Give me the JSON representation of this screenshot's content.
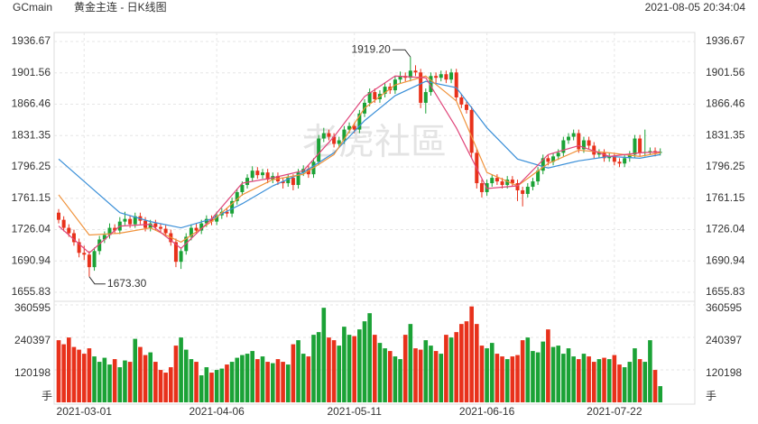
{
  "chart_data": {
    "type": "candlestick",
    "symbol": "GCmain",
    "title": "黄金主连 - 日K线图",
    "timestamp": "2021-08-05 20:34:04",
    "watermark": "老虎社區",
    "up_color": "#1ba236",
    "down_color": "#e8311b",
    "ylim": [
      1649.8,
      1944.7
    ],
    "yticks": [
      1936.67,
      1901.56,
      1866.46,
      1831.35,
      1796.25,
      1761.15,
      1726.04,
      1690.94,
      1655.83
    ],
    "grid": true,
    "categories": [
      null,
      null,
      null,
      null,
      null,
      "2021-03-01",
      null,
      null,
      null,
      null,
      null,
      null,
      null,
      null,
      null,
      null,
      null,
      null,
      null,
      null,
      null,
      null,
      null,
      null,
      null,
      null,
      null,
      null,
      null,
      null,
      null,
      "2021-04-06",
      null,
      null,
      null,
      null,
      null,
      null,
      null,
      null,
      null,
      null,
      null,
      null,
      null,
      null,
      null,
      null,
      null,
      null,
      null,
      null,
      null,
      null,
      null,
      null,
      null,
      null,
      "2021-05-11",
      null,
      null,
      null,
      null,
      null,
      null,
      null,
      null,
      null,
      null,
      null,
      null,
      null,
      null,
      null,
      null,
      null,
      null,
      null,
      null,
      null,
      null,
      null,
      null,
      null,
      "2021-06-16",
      null,
      null,
      null,
      null,
      null,
      null,
      null,
      null,
      null,
      null,
      null,
      null,
      null,
      null,
      null,
      null,
      null,
      null,
      null,
      null,
      null,
      null,
      null,
      null,
      "2021-07-22",
      null,
      null,
      null,
      null,
      null,
      null,
      null,
      null,
      null
    ],
    "candles": [
      [
        1745,
        1749,
        1733,
        1737
      ],
      [
        1737,
        1741,
        1724,
        1728
      ],
      [
        1728,
        1732,
        1718,
        1722
      ],
      [
        1722,
        1726,
        1708,
        1712
      ],
      [
        1712,
        1716,
        1695,
        1700
      ],
      [
        1700,
        1708,
        1692,
        1698
      ],
      [
        1698,
        1702,
        1673.3,
        1684
      ],
      [
        1684,
        1706,
        1680,
        1702
      ],
      [
        1702,
        1719,
        1698,
        1715
      ],
      [
        1715,
        1724,
        1711,
        1720
      ],
      [
        1720,
        1733,
        1716,
        1728
      ],
      [
        1728,
        1732,
        1721,
        1725
      ],
      [
        1725,
        1740,
        1721,
        1735
      ],
      [
        1735,
        1746,
        1731,
        1738
      ],
      [
        1738,
        1742,
        1728,
        1732
      ],
      [
        1732,
        1745,
        1728,
        1741
      ],
      [
        1741,
        1745,
        1732,
        1736
      ],
      [
        1736,
        1740,
        1724,
        1728
      ],
      [
        1728,
        1737,
        1724,
        1733
      ],
      [
        1733,
        1737,
        1725,
        1729
      ],
      [
        1729,
        1733,
        1723,
        1727
      ],
      [
        1727,
        1731,
        1718,
        1722
      ],
      [
        1722,
        1726,
        1708,
        1712
      ],
      [
        1712,
        1716,
        1684,
        1690
      ],
      [
        1690,
        1706,
        1682,
        1702
      ],
      [
        1702,
        1722,
        1698,
        1718
      ],
      [
        1718,
        1732,
        1714,
        1728
      ],
      [
        1728,
        1733,
        1721,
        1725
      ],
      [
        1725,
        1737,
        1721,
        1733
      ],
      [
        1733,
        1742,
        1729,
        1738
      ],
      [
        1738,
        1742,
        1731,
        1735
      ],
      [
        1735,
        1746,
        1731,
        1742
      ],
      [
        1742,
        1750,
        1738,
        1746
      ],
      [
        1746,
        1750,
        1740,
        1744
      ],
      [
        1744,
        1762,
        1740,
        1758
      ],
      [
        1758,
        1772,
        1754,
        1768
      ],
      [
        1768,
        1780,
        1764,
        1776
      ],
      [
        1776,
        1788,
        1772,
        1784
      ],
      [
        1784,
        1797,
        1780,
        1792
      ],
      [
        1792,
        1796,
        1783,
        1787
      ],
      [
        1787,
        1794,
        1783,
        1790
      ],
      [
        1790,
        1794,
        1778,
        1782
      ],
      [
        1782,
        1790,
        1778,
        1786
      ],
      [
        1786,
        1790,
        1776,
        1780
      ],
      [
        1780,
        1784,
        1772,
        1778
      ],
      [
        1778,
        1788,
        1774,
        1784
      ],
      [
        1784,
        1788,
        1770,
        1776
      ],
      [
        1776,
        1794,
        1772,
        1790
      ],
      [
        1790,
        1798,
        1786,
        1794
      ],
      [
        1794,
        1798,
        1784,
        1788
      ],
      [
        1788,
        1806,
        1784,
        1802
      ],
      [
        1802,
        1832,
        1798,
        1828
      ],
      [
        1828,
        1840,
        1824,
        1834
      ],
      [
        1834,
        1838,
        1826,
        1830
      ],
      [
        1830,
        1834,
        1818,
        1822
      ],
      [
        1822,
        1830,
        1818,
        1826
      ],
      [
        1826,
        1842,
        1822,
        1838
      ],
      [
        1838,
        1846,
        1834,
        1842
      ],
      [
        1842,
        1846,
        1834,
        1838
      ],
      [
        1838,
        1860,
        1834,
        1856
      ],
      [
        1856,
        1872,
        1852,
        1868
      ],
      [
        1868,
        1884,
        1864,
        1880
      ],
      [
        1880,
        1884,
        1868,
        1872
      ],
      [
        1872,
        1882,
        1868,
        1878
      ],
      [
        1878,
        1890,
        1874,
        1886
      ],
      [
        1886,
        1890,
        1878,
        1882
      ],
      [
        1882,
        1898,
        1878,
        1894
      ],
      [
        1894,
        1903,
        1890,
        1898
      ],
      [
        1898,
        1902,
        1892,
        1896
      ],
      [
        1896,
        1919.2,
        1892,
        1904
      ],
      [
        1904,
        1910,
        1898,
        1902
      ],
      [
        1902,
        1906,
        1862,
        1868
      ],
      [
        1868,
        1884,
        1856,
        1880
      ],
      [
        1880,
        1902,
        1876,
        1898
      ],
      [
        1898,
        1902,
        1890,
        1896
      ],
      [
        1896,
        1904,
        1892,
        1900
      ],
      [
        1900,
        1904,
        1890,
        1894
      ],
      [
        1894,
        1906,
        1890,
        1902
      ],
      [
        1902,
        1906,
        1870,
        1874
      ],
      [
        1874,
        1878,
        1862,
        1866
      ],
      [
        1866,
        1870,
        1856,
        1860
      ],
      [
        1860,
        1864,
        1806,
        1812
      ],
      [
        1812,
        1816,
        1772,
        1778
      ],
      [
        1778,
        1782,
        1762,
        1768
      ],
      [
        1768,
        1782,
        1764,
        1778
      ],
      [
        1778,
        1788,
        1774,
        1784
      ],
      [
        1784,
        1788,
        1776,
        1780
      ],
      [
        1780,
        1784,
        1772,
        1776
      ],
      [
        1776,
        1786,
        1772,
        1782
      ],
      [
        1782,
        1786,
        1774,
        1778
      ],
      [
        1778,
        1782,
        1758,
        1770
      ],
      [
        1770,
        1774,
        1752,
        1766
      ],
      [
        1766,
        1778,
        1762,
        1774
      ],
      [
        1774,
        1784,
        1770,
        1780
      ],
      [
        1780,
        1796,
        1776,
        1792
      ],
      [
        1792,
        1810,
        1788,
        1806
      ],
      [
        1806,
        1810,
        1798,
        1802
      ],
      [
        1802,
        1812,
        1798,
        1808
      ],
      [
        1808,
        1816,
        1804,
        1812
      ],
      [
        1812,
        1830,
        1808,
        1826
      ],
      [
        1826,
        1834,
        1822,
        1830
      ],
      [
        1830,
        1838,
        1826,
        1834
      ],
      [
        1834,
        1838,
        1812,
        1816
      ],
      [
        1816,
        1830,
        1812,
        1826
      ],
      [
        1826,
        1830,
        1816,
        1820
      ],
      [
        1820,
        1824,
        1806,
        1810
      ],
      [
        1810,
        1816,
        1806,
        1812
      ],
      [
        1812,
        1816,
        1802,
        1806
      ],
      [
        1806,
        1812,
        1802,
        1808
      ],
      [
        1808,
        1812,
        1798,
        1802
      ],
      [
        1802,
        1806,
        1796,
        1800
      ],
      [
        1800,
        1810,
        1796,
        1806
      ],
      [
        1806,
        1814,
        1802,
        1810
      ],
      [
        1810,
        1832,
        1806,
        1828
      ],
      [
        1828,
        1832,
        1808,
        1812
      ],
      [
        1812,
        1838,
        1808,
        1813
      ],
      [
        1813,
        1818,
        1810,
        1814
      ],
      [
        1814,
        1818,
        1808,
        1812
      ],
      [
        1812,
        1817,
        1809,
        1813
      ]
    ],
    "annotations": [
      {
        "value": 1919.2,
        "label": "1919.20"
      },
      {
        "value": 1673.3,
        "label": "1673.30"
      }
    ],
    "overlays": {
      "x": [
        0,
        6,
        12,
        18,
        24,
        30,
        36,
        42,
        48,
        54,
        60,
        66,
        72,
        78,
        84,
        90,
        96,
        102,
        108,
        114,
        118
      ],
      "series": [
        {
          "color": "#3a8fd8",
          "values": [
            1805,
            1775,
            1745,
            1735,
            1728,
            1738,
            1755,
            1775,
            1790,
            1812,
            1848,
            1876,
            1892,
            1885,
            1840,
            1805,
            1795,
            1803,
            1808,
            1806,
            1810
          ]
        },
        {
          "color": "#f0923a",
          "values": [
            1765,
            1720,
            1722,
            1728,
            1712,
            1735,
            1765,
            1782,
            1788,
            1810,
            1862,
            1888,
            1898,
            1870,
            1790,
            1775,
            1800,
            1815,
            1812,
            1808,
            1812
          ]
        },
        {
          "color": "#e0457a",
          "values": [
            1730,
            1700,
            1730,
            1732,
            1705,
            1738,
            1778,
            1784,
            1792,
            1830,
            1875,
            1898,
            1896,
            1840,
            1772,
            1775,
            1810,
            1820,
            1808,
            1812,
            1813
          ]
        }
      ]
    },
    "volume": {
      "unit": "手",
      "ylim": [
        0,
        360595
      ],
      "yticks": [
        360595,
        240397,
        120198
      ],
      "values": [
        230000,
        215000,
        240000,
        205000,
        195000,
        180000,
        200000,
        170000,
        150000,
        165000,
        140000,
        160000,
        130000,
        155000,
        150000,
        235000,
        205000,
        175000,
        185000,
        150000,
        120000,
        110000,
        130000,
        210000,
        240000,
        195000,
        160000,
        150000,
        100000,
        130000,
        110000,
        120000,
        125000,
        140000,
        150000,
        165000,
        175000,
        180000,
        190000,
        160000,
        170000,
        150000,
        145000,
        160000,
        150000,
        140000,
        215000,
        230000,
        180000,
        170000,
        250000,
        260000,
        350000,
        240000,
        230000,
        210000,
        280000,
        250000,
        245000,
        270000,
        300000,
        330000,
        250000,
        220000,
        200000,
        190000,
        170000,
        160000,
        250000,
        290000,
        200000,
        195000,
        230000,
        210000,
        190000,
        180000,
        250000,
        240000,
        260000,
        290000,
        300000,
        355000,
        290000,
        210000,
        200000,
        220000,
        180000,
        170000,
        160000,
        170000,
        175000,
        230000,
        240000,
        190000,
        185000,
        225000,
        270000,
        205000,
        210000,
        180000,
        200000,
        170000,
        160000,
        180000,
        170000,
        150000,
        160000,
        165000,
        160000,
        175000,
        140000,
        130000,
        150000,
        200000,
        160000,
        150000,
        230000,
        120000,
        60000
      ]
    }
  }
}
